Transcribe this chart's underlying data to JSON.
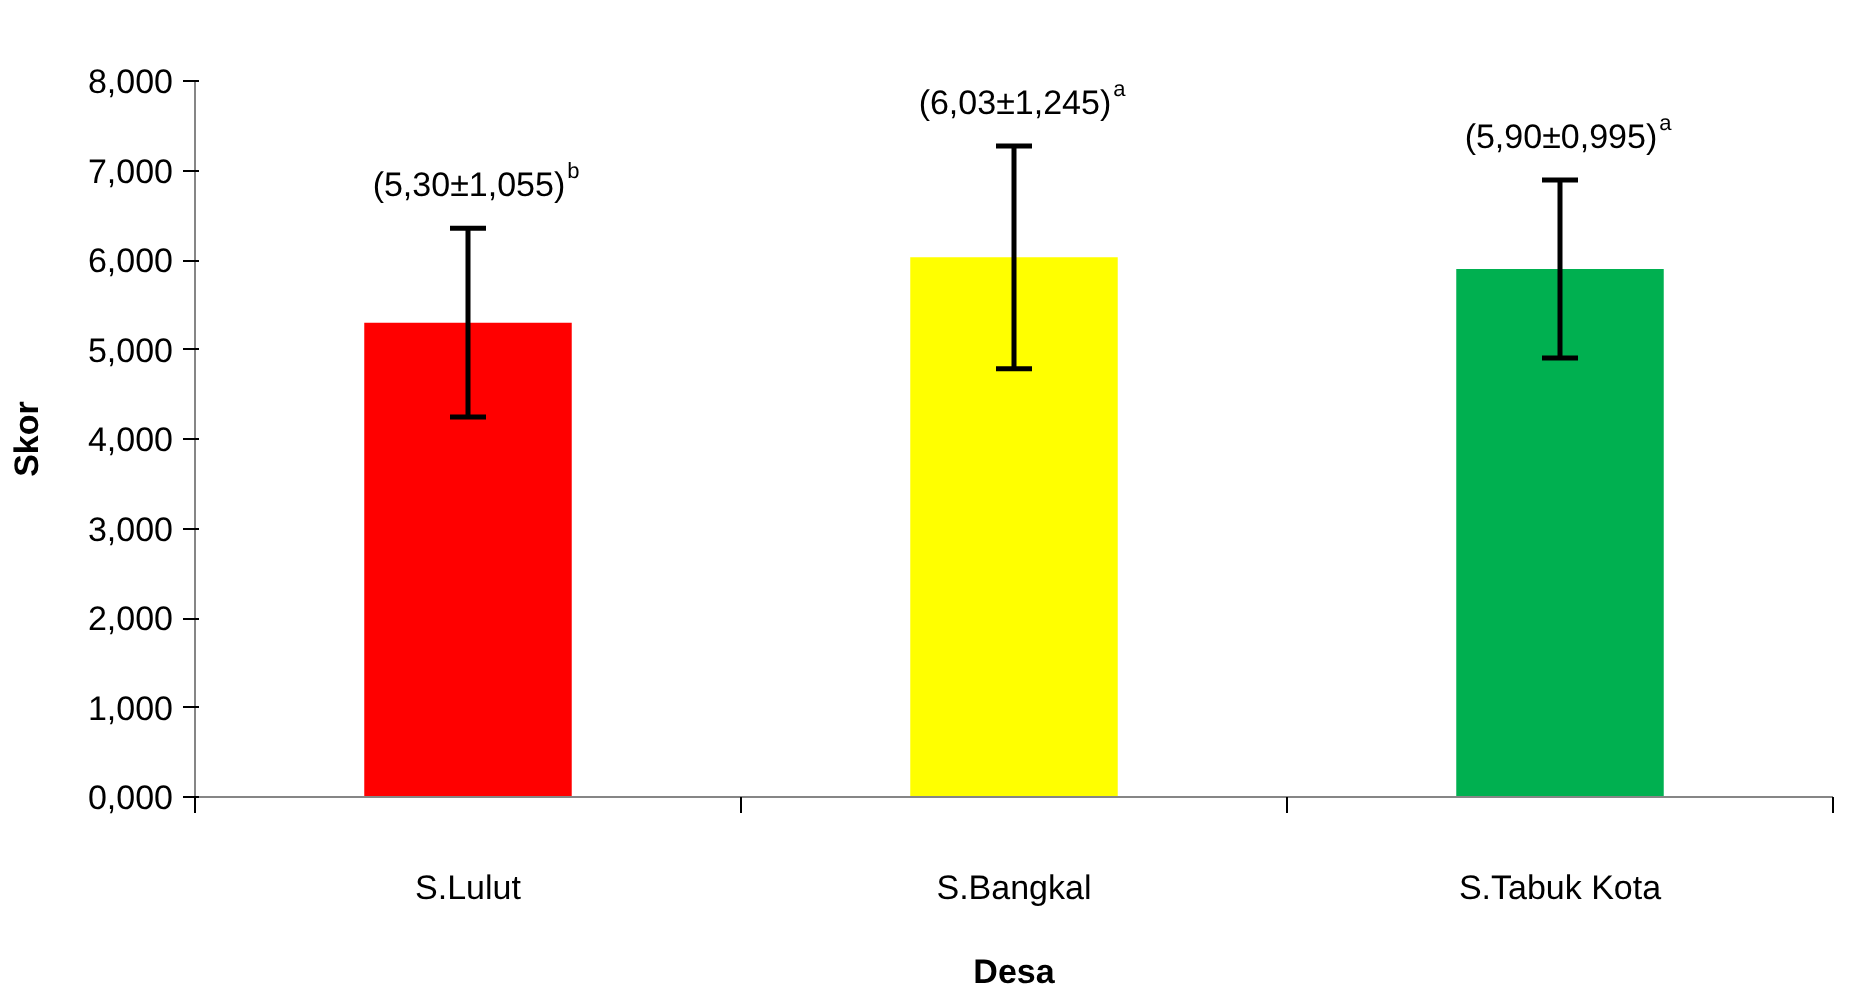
{
  "chart_data": {
    "type": "bar",
    "xlabel": "Desa",
    "ylabel": "Skor",
    "categories": [
      "S.Lulut",
      "S.Bangkal",
      "S.Tabuk Kota"
    ],
    "values": [
      5.3,
      6.03,
      5.9
    ],
    "colors": [
      "#ff0000",
      "#ffff00",
      "#00b050"
    ],
    "errors": [
      1.055,
      1.245,
      0.995
    ],
    "ylim": [
      0,
      8
    ],
    "yticks": [
      {
        "value": 0,
        "label": "0,000"
      },
      {
        "value": 1,
        "label": "1,000"
      },
      {
        "value": 2,
        "label": "2,000"
      },
      {
        "value": 3,
        "label": "3,000"
      },
      {
        "value": 4,
        "label": "4,000"
      },
      {
        "value": 5,
        "label": "5,000"
      },
      {
        "value": 6,
        "label": "6,000"
      },
      {
        "value": 7,
        "label": "7,000"
      },
      {
        "value": 8,
        "label": "8,000"
      }
    ],
    "annotations": [
      {
        "text": "(5,30±1,055)$^{b}$",
        "x": "S.Lulut",
        "y": 6.355
      },
      {
        "text": "(6,03±1,245)$^{a}$",
        "x": "S.Bangkal",
        "y": 7.275
      },
      {
        "text": "(5,90±0,995)$^{a}$",
        "x": "S.Tabuk Kota",
        "y": 6.895
      }
    ],
    "grid": false
  }
}
